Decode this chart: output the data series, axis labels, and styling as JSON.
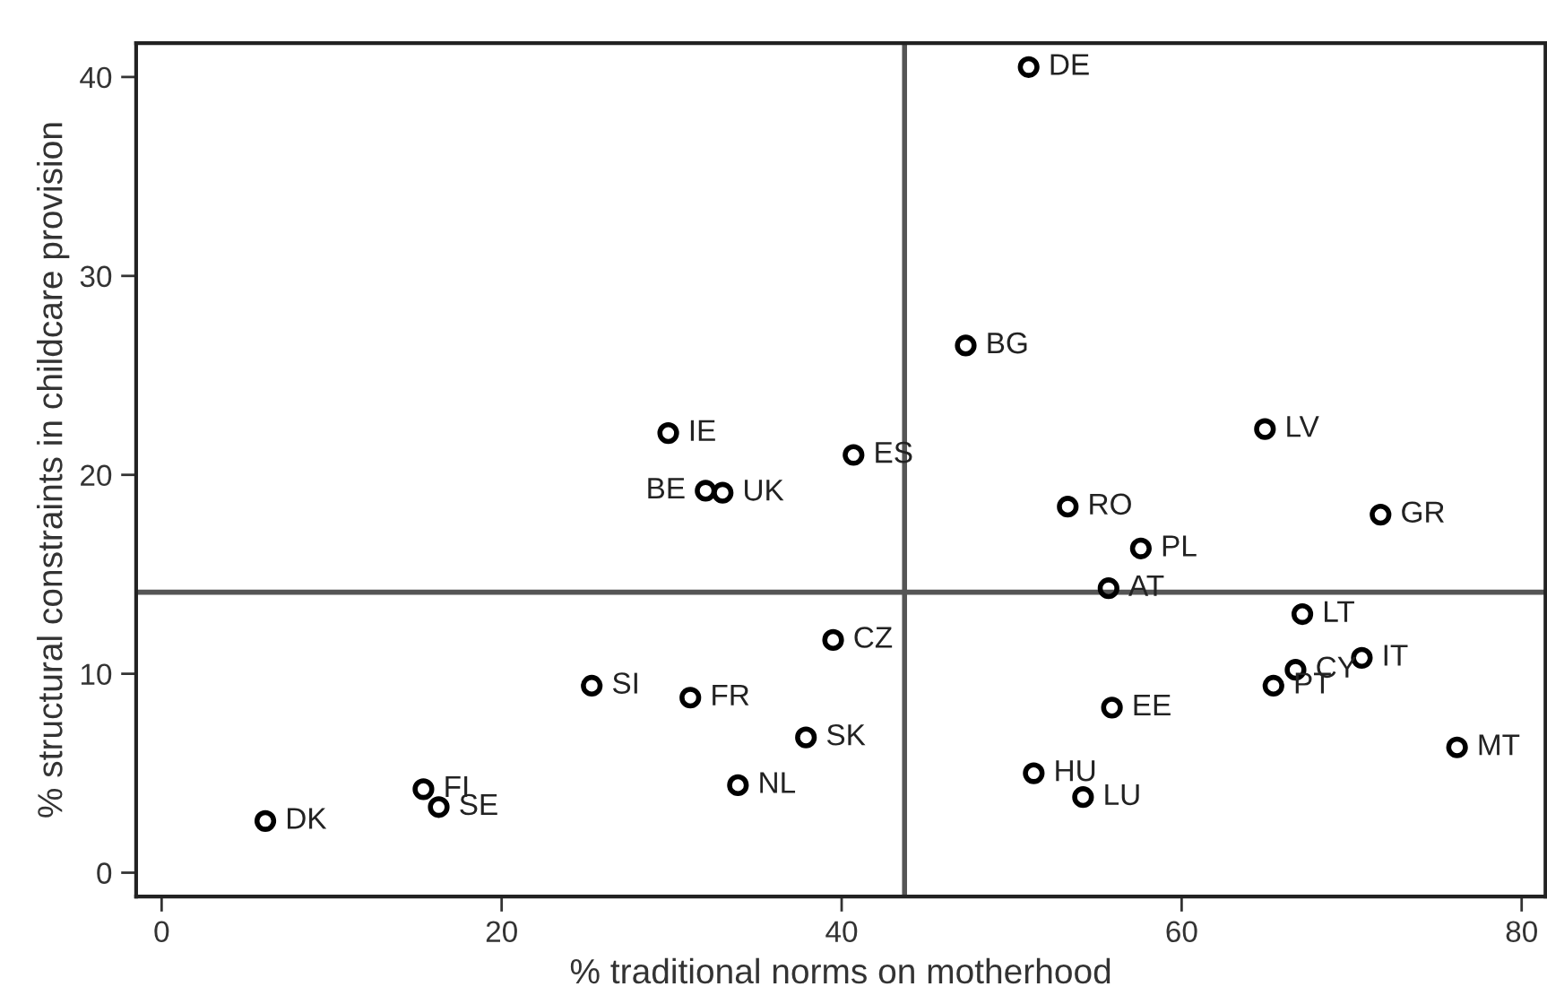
{
  "chart_data": {
    "type": "scatter",
    "xlabel": "% traditional norms on motherhood",
    "ylabel": "% structural constraints in childcare provision",
    "series": [
      {
        "color": "#000000",
        "x": [
          51.0,
          47.3,
          64.9,
          40.7,
          29.8,
          32.0,
          33.0,
          53.3,
          71.7,
          57.6,
          55.7,
          67.1,
          39.5,
          70.6,
          66.7,
          65.4,
          55.9,
          37.9,
          76.2,
          51.3,
          54.2,
          33.9,
          25.3,
          31.1,
          6.1,
          15.4,
          16.3
        ],
        "values": [
          40.5,
          26.5,
          22.3,
          21.0,
          22.1,
          19.2,
          19.1,
          18.4,
          18.0,
          16.3,
          14.3,
          13.0,
          11.7,
          10.8,
          10.2,
          9.4,
          8.3,
          6.8,
          6.3,
          5.0,
          3.8,
          4.4,
          9.4,
          8.8,
          2.6,
          4.2,
          3.3
        ]
      }
    ],
    "annotations": [
      {
        "text": "DE",
        "x": 51.0,
        "y": 40.5
      },
      {
        "text": "BG",
        "x": 47.3,
        "y": 26.5
      },
      {
        "text": "LV",
        "x": 64.9,
        "y": 22.3
      },
      {
        "text": "ES",
        "x": 40.7,
        "y": 21.0
      },
      {
        "text": "IE",
        "x": 29.8,
        "y": 22.1
      },
      {
        "text": "BE",
        "x": 32.0,
        "y": 19.2
      },
      {
        "text": "UK",
        "x": 33.0,
        "y": 19.1
      },
      {
        "text": "RO",
        "x": 53.3,
        "y": 18.4
      },
      {
        "text": "GR",
        "x": 71.7,
        "y": 18.0
      },
      {
        "text": "PL",
        "x": 57.6,
        "y": 16.3
      },
      {
        "text": "AT",
        "x": 55.7,
        "y": 14.3
      },
      {
        "text": "LT",
        "x": 67.1,
        "y": 13.0
      },
      {
        "text": "CZ",
        "x": 39.5,
        "y": 11.7
      },
      {
        "text": "IT",
        "x": 70.6,
        "y": 10.8
      },
      {
        "text": "CY",
        "x": 66.7,
        "y": 10.2
      },
      {
        "text": "PT",
        "x": 65.4,
        "y": 9.4
      },
      {
        "text": "EE",
        "x": 55.9,
        "y": 8.3
      },
      {
        "text": "SK",
        "x": 37.9,
        "y": 6.8
      },
      {
        "text": "MT",
        "x": 76.2,
        "y": 6.3
      },
      {
        "text": "HU",
        "x": 51.3,
        "y": 5.0
      },
      {
        "text": "LU",
        "x": 54.2,
        "y": 3.8
      },
      {
        "text": "NL",
        "x": 33.9,
        "y": 4.4
      },
      {
        "text": "SI",
        "x": 25.3,
        "y": 9.4
      },
      {
        "text": "FR",
        "x": 31.1,
        "y": 8.8
      },
      {
        "text": "DK",
        "x": 6.1,
        "y": 2.6
      },
      {
        "text": "FI",
        "x": 15.4,
        "y": 4.2
      },
      {
        "text": "SE",
        "x": 16.3,
        "y": 3.3
      }
    ],
    "ref_lines": [
      {
        "axis": "x",
        "value": 43.7,
        "color": "#555555"
      },
      {
        "axis": "y",
        "value": 14.1,
        "color": "#555555"
      }
    ],
    "xlim": [
      -1.5,
      81.4
    ],
    "ylim": [
      -1.2,
      41.7
    ],
    "xticks": [
      0,
      20,
      40,
      60,
      80
    ],
    "yticks": [
      0,
      10,
      20,
      30,
      40
    ],
    "marker": "circle",
    "grid": false,
    "legend": false
  }
}
